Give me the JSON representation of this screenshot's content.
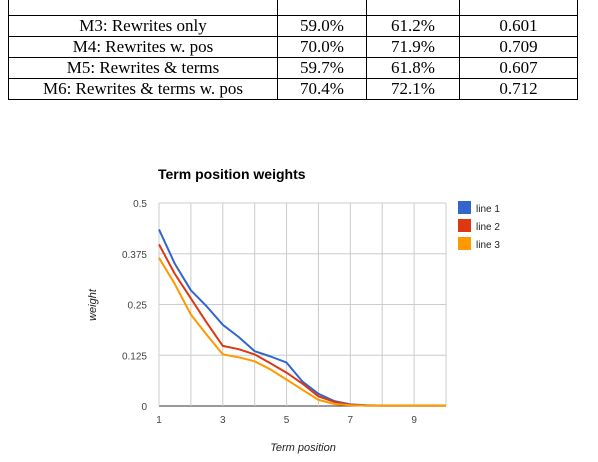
{
  "table": {
    "rows": [
      [
        "",
        "",
        "",
        ""
      ],
      [
        "M3: Rewrites only",
        "59.0%",
        "61.2%",
        "0.601"
      ],
      [
        "M4: Rewrites w. pos",
        "70.0%",
        "71.9%",
        "0.709"
      ],
      [
        "M5: Rewrites & terms",
        "59.7%",
        "61.8%",
        "0.607"
      ],
      [
        "M6: Rewrites & terms w. pos",
        "70.4%",
        "72.1%",
        "0.712"
      ]
    ]
  },
  "chart_data": {
    "type": "line",
    "title": "Term position weights",
    "xlabel": "Term position",
    "ylabel": "weight",
    "xlim": [
      1,
      10
    ],
    "ylim": [
      0,
      0.5
    ],
    "x_ticks": [
      "1",
      "3",
      "5",
      "7",
      "9"
    ],
    "y_ticks": [
      "0",
      "0.125",
      "0.25",
      "0.375",
      "0.5"
    ],
    "grid": true,
    "legend_position": "right",
    "series": [
      {
        "name": "line 1",
        "color": "#3366cc",
        "x": [
          1,
          1.5,
          2,
          2.5,
          3,
          3.5,
          4,
          4.5,
          5,
          5.5,
          6,
          6.5,
          7,
          7.5,
          8,
          8.5,
          9,
          9.5,
          10
        ],
        "y": [
          0.435,
          0.35,
          0.285,
          0.245,
          0.2,
          0.17,
          0.135,
          0.122,
          0.107,
          0.06,
          0.03,
          0.012,
          0.004,
          0.002,
          0.001,
          0.001,
          0.001,
          0.001,
          0.001
        ]
      },
      {
        "name": "line 2",
        "color": "#dc3912",
        "x": [
          1,
          1.5,
          2,
          2.5,
          3,
          3.5,
          4,
          4.5,
          5,
          5.5,
          6,
          6.5,
          7,
          7.5,
          8,
          8.5,
          9,
          9.5,
          10
        ],
        "y": [
          0.398,
          0.325,
          0.265,
          0.205,
          0.148,
          0.14,
          0.127,
          0.105,
          0.082,
          0.055,
          0.024,
          0.01,
          0.003,
          0.001,
          0.001,
          0.001,
          0.001,
          0.001,
          0.001
        ]
      },
      {
        "name": "line 3",
        "color": "#ff9900",
        "x": [
          1,
          1.5,
          2,
          2.5,
          3,
          3.5,
          4,
          4.5,
          5,
          5.5,
          6,
          6.5,
          7,
          7.5,
          8,
          8.5,
          9,
          9.5,
          10
        ],
        "y": [
          0.365,
          0.3,
          0.225,
          0.175,
          0.127,
          0.12,
          0.11,
          0.09,
          0.065,
          0.04,
          0.015,
          0.005,
          0.002,
          0.001,
          0.001,
          0.001,
          0.001,
          0.001,
          0.001
        ]
      }
    ]
  }
}
